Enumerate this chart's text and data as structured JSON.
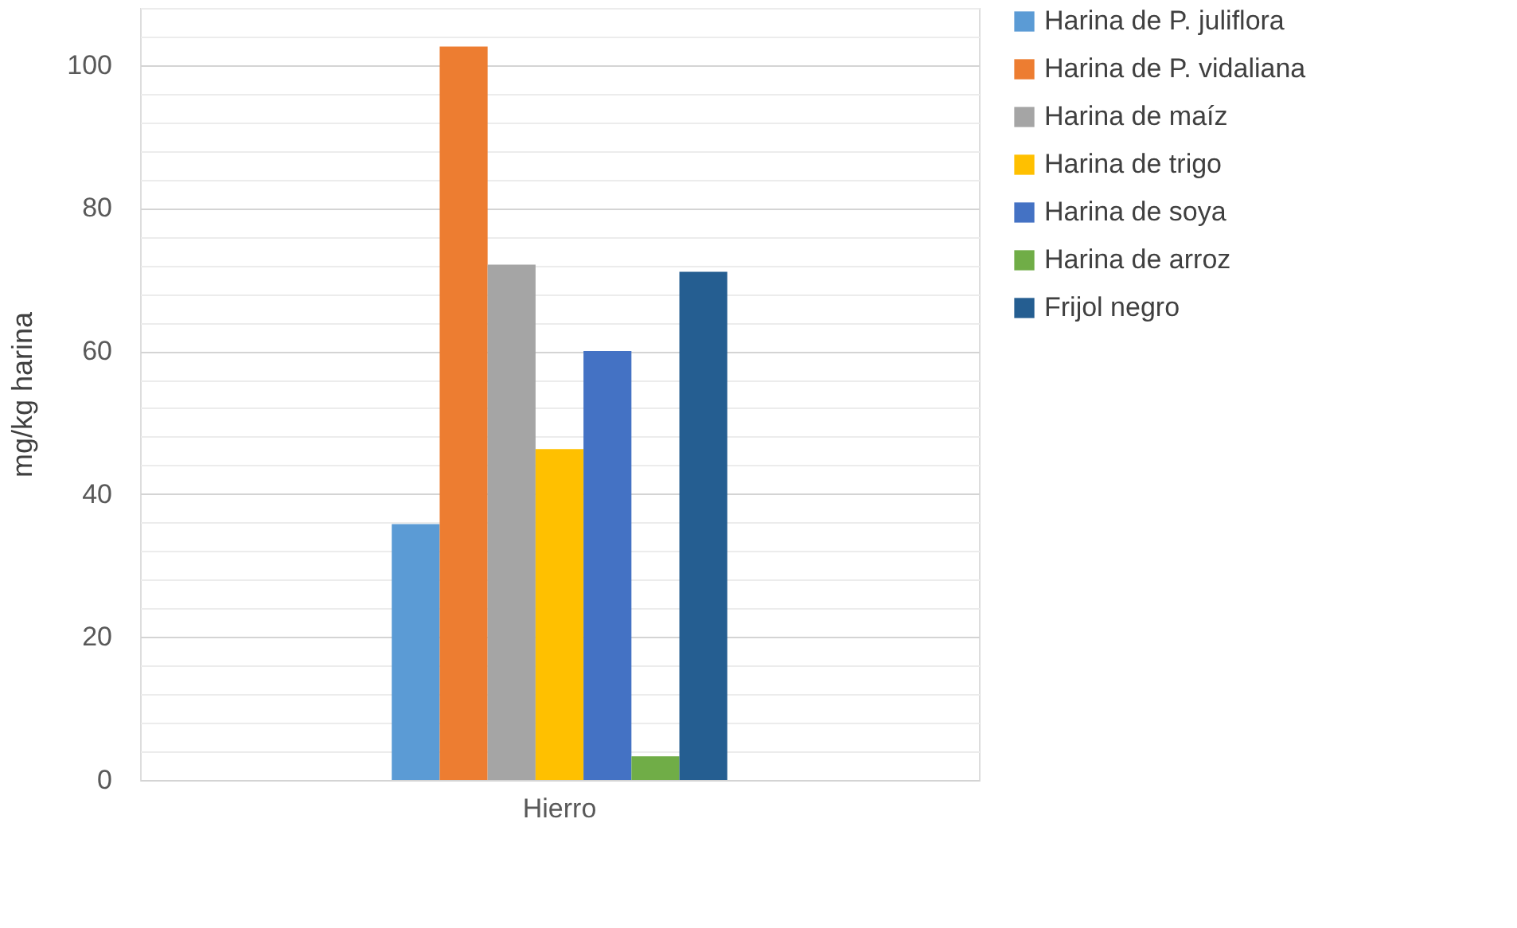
{
  "chart_data": {
    "type": "bar",
    "categories": [
      "Hierro"
    ],
    "ylabel": "mg/kg harina",
    "ylim": [
      0,
      108
    ],
    "yticks": [
      0,
      {
        "value": 4,
        "label": null
      },
      {
        "value": 8,
        "label": null
      },
      {
        "value": 12,
        "label": null
      },
      {
        "value": 16,
        "label": null
      },
      20,
      {
        "value": 24,
        "label": null
      },
      {
        "value": 28,
        "label": null
      },
      {
        "value": 32,
        "label": null
      },
      {
        "value": 36,
        "label": null
      },
      40,
      {
        "value": 44,
        "label": null
      },
      {
        "value": 48,
        "label": null
      },
      {
        "value": 52,
        "label": null
      },
      {
        "value": 56,
        "label": null
      },
      60,
      {
        "value": 64,
        "label": null
      },
      {
        "value": 68,
        "label": null
      },
      {
        "value": 72,
        "label": null
      },
      {
        "value": 76,
        "label": null
      },
      80,
      {
        "value": 84,
        "label": null
      },
      {
        "value": 88,
        "label": null
      },
      {
        "value": 92,
        "label": null
      },
      {
        "value": 96,
        "label": null
      },
      100,
      {
        "value": 104,
        "label": null
      },
      {
        "value": 108,
        "label": null
      }
    ],
    "grid": "y",
    "legend": "right",
    "series": [
      {
        "name": "Harina de P. juliflora",
        "color": "#5b9bd5",
        "values": [
          35.8
        ]
      },
      {
        "name": "Harina de P. vidaliana",
        "color": "#ed7d31",
        "values": [
          102.6
        ]
      },
      {
        "name": "Harina de maíz",
        "color": "#a5a5a5",
        "values": [
          72.1
        ]
      },
      {
        "name": "Harina de trigo",
        "color": "#ffc000",
        "values": [
          46.3
        ]
      },
      {
        "name": "Harina de soya",
        "color": "#4472c4",
        "values": [
          60
        ]
      },
      {
        "name": "Harina de arroz",
        "color": "#70ad47",
        "values": [
          3.3
        ]
      },
      {
        "name": "Frijol negro",
        "color": "#255e91",
        "values": [
          71.1
        ]
      }
    ]
  }
}
